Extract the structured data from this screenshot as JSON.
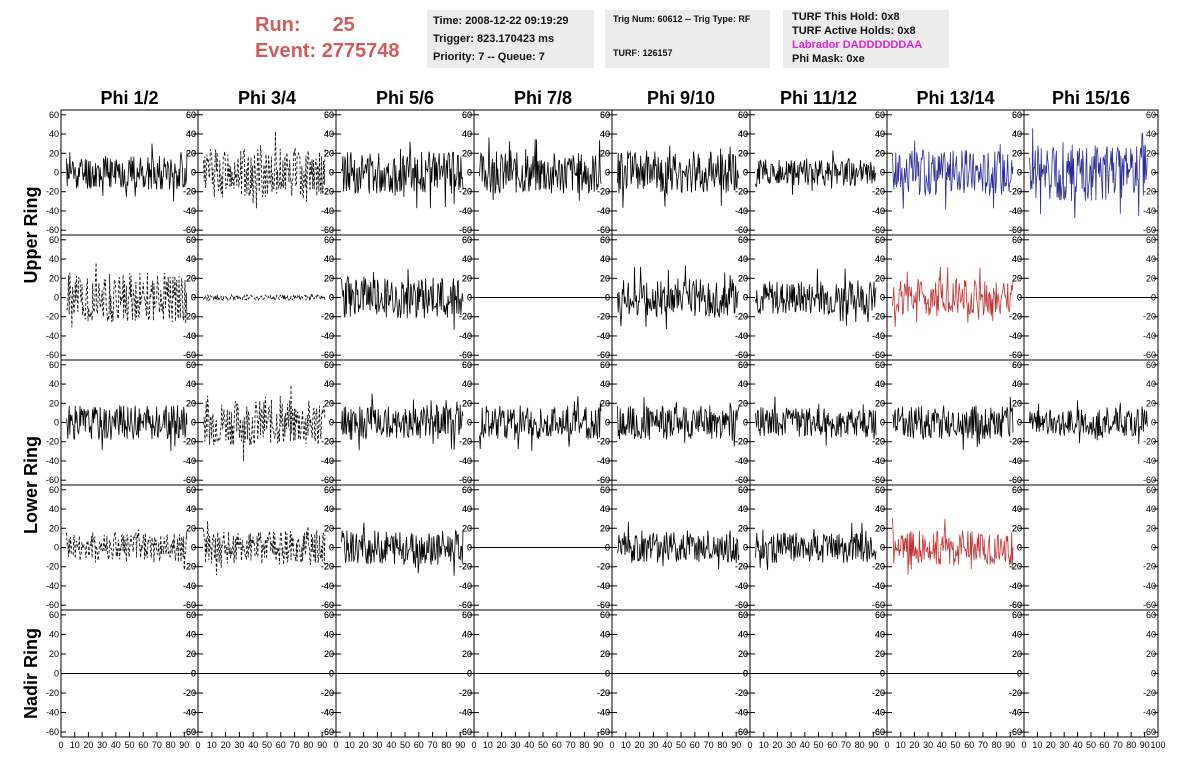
{
  "header": {
    "run_label": "Run:",
    "run_value": "25",
    "event_label": "Event:",
    "event_value": "2775748",
    "time": "Time: 2008-12-22 09:19:29",
    "trigger": "Trigger: 823.170423 ms",
    "priority": "Priority: 7 -- Queue: 7",
    "trig_num": "Trig Num: 60612 -- Trig Type: RF",
    "turf": "TURF: 126157",
    "turf_this_hold": "TURF This Hold: 0x8",
    "turf_active_holds": "TURF Active Holds: 0x8",
    "labrador": "Labrador DADDDDDDAA",
    "phi_mask": "Phi Mask: 0xe",
    "labrador_color": "#e020e0",
    "run_color": "#d45a5a"
  },
  "chart_data": {
    "type": "line",
    "column_titles": [
      "Phi 1/2",
      "Phi 3/4",
      "Phi 5/6",
      "Phi 7/8",
      "Phi 9/10",
      "Phi 11/12",
      "Phi 13/14",
      "Phi 15/16"
    ],
    "ring_labels": [
      "Upper Ring",
      "Lower Ring",
      "Nadir Ring"
    ],
    "xlim": [
      0,
      100
    ],
    "ylim": [
      -65,
      65
    ],
    "x_ticks": [
      "0",
      "10",
      "20",
      "30",
      "40",
      "50",
      "60",
      "70",
      "80",
      "90",
      "100"
    ],
    "y_ticks": [
      "60",
      "40",
      "20",
      "0",
      "-20",
      "-40",
      "-60"
    ],
    "series_colors": {
      "black": "#000000",
      "blue": "#2d2d9a",
      "red": "#c23434"
    },
    "grid": false,
    "rows": [
      [
        {
          "style": "solid",
          "color": "black",
          "amp": 18,
          "seed": 11
        },
        {
          "style": "dashed",
          "color": "black",
          "amp": 26,
          "seed": 12
        },
        {
          "style": "solid",
          "color": "black",
          "amp": 22,
          "seed": 13
        },
        {
          "style": "solid",
          "color": "black",
          "amp": 22,
          "seed": 14
        },
        {
          "style": "solid",
          "color": "black",
          "amp": 22,
          "seed": 15
        },
        {
          "style": "solid",
          "color": "black",
          "amp": 14,
          "seed": 16
        },
        {
          "style": "solid",
          "color": "blue",
          "amp": 24,
          "seed": 17
        },
        {
          "style": "solid",
          "color": "blue",
          "amp": 30,
          "seed": 18
        }
      ],
      [
        {
          "style": "dashed",
          "color": "black",
          "amp": 26,
          "seed": 21
        },
        {
          "style": "dashed",
          "color": "black",
          "amp": 3,
          "seed": 22
        },
        {
          "style": "solid",
          "color": "black",
          "amp": 22,
          "seed": 23
        },
        {
          "style": "flat",
          "color": "black",
          "amp": 0,
          "seed": 24
        },
        {
          "style": "solid",
          "color": "black",
          "amp": 20,
          "seed": 25
        },
        {
          "style": "solid",
          "color": "black",
          "amp": 18,
          "seed": 26
        },
        {
          "style": "solid",
          "color": "red",
          "amp": 20,
          "seed": 27
        },
        {
          "style": "flat",
          "color": "black",
          "amp": 0,
          "seed": 28
        }
      ],
      [
        {
          "style": "solid",
          "color": "black",
          "amp": 18,
          "seed": 31
        },
        {
          "style": "dashed",
          "color": "black",
          "amp": 24,
          "seed": 32
        },
        {
          "style": "solid",
          "color": "black",
          "amp": 18,
          "seed": 33
        },
        {
          "style": "solid",
          "color": "black",
          "amp": 18,
          "seed": 34
        },
        {
          "style": "solid",
          "color": "black",
          "amp": 18,
          "seed": 35
        },
        {
          "style": "solid",
          "color": "black",
          "amp": 16,
          "seed": 36
        },
        {
          "style": "solid",
          "color": "black",
          "amp": 18,
          "seed": 37
        },
        {
          "style": "solid",
          "color": "black",
          "amp": 14,
          "seed": 38
        }
      ],
      [
        {
          "style": "dashed",
          "color": "black",
          "amp": 16,
          "seed": 41
        },
        {
          "style": "dashed",
          "color": "black",
          "amp": 18,
          "seed": 42
        },
        {
          "style": "solid",
          "color": "black",
          "amp": 18,
          "seed": 43
        },
        {
          "style": "flat",
          "color": "black",
          "amp": 0,
          "seed": 44
        },
        {
          "style": "solid",
          "color": "black",
          "amp": 16,
          "seed": 45
        },
        {
          "style": "solid",
          "color": "black",
          "amp": 16,
          "seed": 46
        },
        {
          "style": "solid",
          "color": "red",
          "amp": 18,
          "seed": 47
        },
        {
          "style": "empty",
          "color": "black",
          "amp": 0,
          "seed": 48
        }
      ],
      [
        {
          "style": "flat",
          "color": "black",
          "amp": 0,
          "seed": 51
        },
        {
          "style": "flat",
          "color": "black",
          "amp": 0,
          "seed": 52
        },
        {
          "style": "flat",
          "color": "black",
          "amp": 0,
          "seed": 53
        },
        {
          "style": "flat",
          "color": "black",
          "amp": 0,
          "seed": 54
        },
        {
          "style": "flat",
          "color": "black",
          "amp": 0,
          "seed": 55
        },
        {
          "style": "flat",
          "color": "black",
          "amp": 0,
          "seed": 56
        },
        {
          "style": "flat",
          "color": "black",
          "amp": 0,
          "seed": 57
        },
        {
          "style": "empty",
          "color": "black",
          "amp": 0,
          "seed": 58
        }
      ]
    ]
  }
}
